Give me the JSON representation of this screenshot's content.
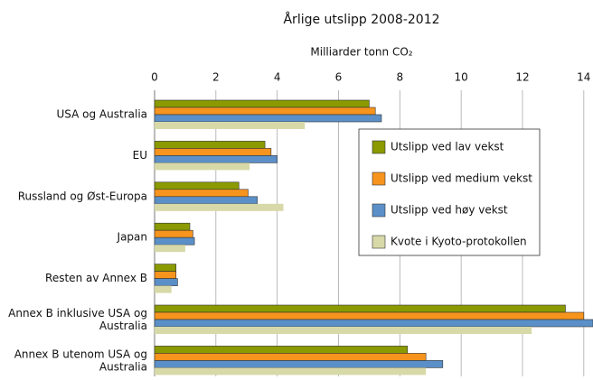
{
  "chart_data": {
    "type": "hbar",
    "title": "Årlige utslipp 2008-2012",
    "x_label": "Milliarder tonn CO₂",
    "categories": [
      "USA og Australia",
      "EU",
      "Russland og Øst-Europa",
      "Japan",
      "Resten av Annex B",
      "Annex B inklusive USA og Australia",
      "Annex B utenom USA og Australia"
    ],
    "series": [
      {
        "name": "Utslipp  ved lav vekst",
        "color": "#8a9a00",
        "values": [
          7.0,
          3.6,
          2.75,
          1.15,
          0.7,
          13.4,
          8.25
        ]
      },
      {
        "name": "Utslipp ved medium vekst",
        "color": "#f7941d",
        "values": [
          7.2,
          3.8,
          3.05,
          1.25,
          0.7,
          14.0,
          8.85
        ]
      },
      {
        "name": "Utslipp ved høy vekst",
        "color": "#5b8fc7",
        "values": [
          7.4,
          4.0,
          3.35,
          1.3,
          0.75,
          14.3,
          9.4
        ]
      },
      {
        "name": "Kvote i Kyoto-protokollen",
        "color": "#d7d9a8",
        "values": [
          4.9,
          3.1,
          4.2,
          1.0,
          0.55,
          12.3,
          8.85
        ]
      }
    ],
    "xlim": [
      0,
      14.3
    ],
    "xticks": [
      0,
      2,
      4,
      6,
      8,
      10,
      12,
      14
    ],
    "grid": true,
    "legend": "right"
  }
}
